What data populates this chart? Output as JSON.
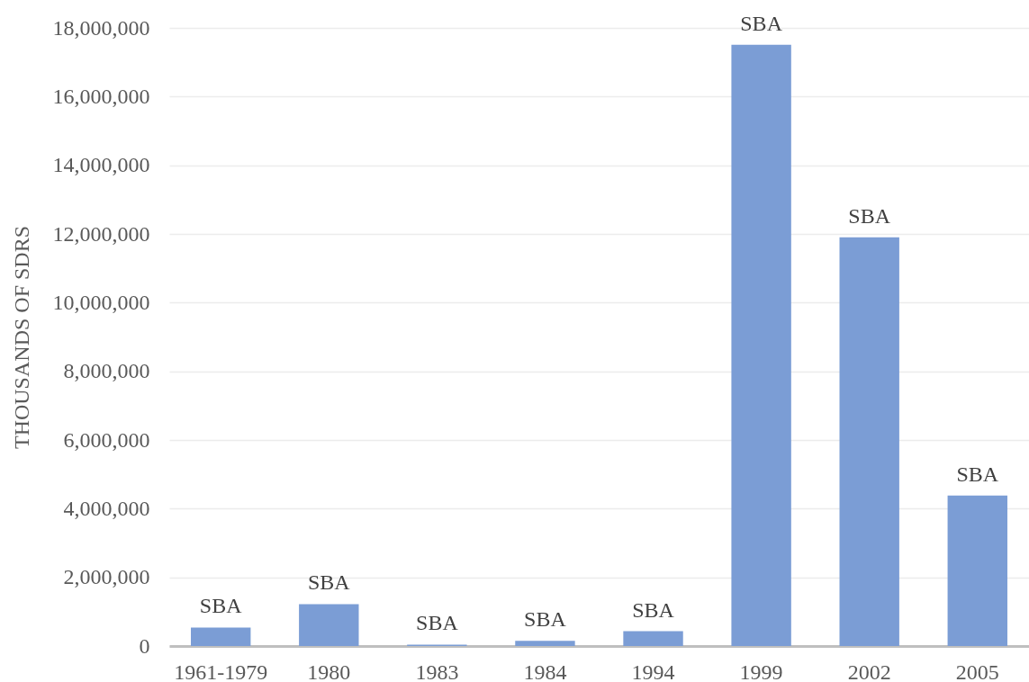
{
  "chart_data": {
    "type": "bar",
    "ylabel": "THOUSANDS OF SDRS",
    "categories": [
      "1961-1979",
      "1980",
      "1983",
      "1984",
      "1994",
      "1999",
      "2002",
      "2005"
    ],
    "values": [
      540000,
      1220000,
      40000,
      150000,
      430000,
      17510000,
      11900000,
      4380000
    ],
    "value_labels": [
      "SBA",
      "SBA",
      "SBA",
      "SBA",
      "SBA",
      "SBA",
      "SBA",
      "SBA"
    ],
    "color": "#7b9dd5",
    "ylim": [
      0,
      18000000
    ],
    "yticks": [
      0,
      {
        "value": 2000000,
        "label": "2,000,000"
      },
      {
        "value": 4000000,
        "label": "4,000,000"
      },
      {
        "value": 6000000,
        "label": "6,000,000"
      },
      {
        "value": 8000000,
        "label": "8,000,000"
      },
      {
        "value": 10000000,
        "label": "10,000,000"
      },
      {
        "value": 12000000,
        "label": "12,000,000"
      },
      {
        "value": 14000000,
        "label": "14,000,000"
      },
      {
        "value": 16000000,
        "label": "16,000,000"
      },
      {
        "value": 18000000,
        "label": "18,000,000"
      }
    ],
    "grid": "y"
  }
}
